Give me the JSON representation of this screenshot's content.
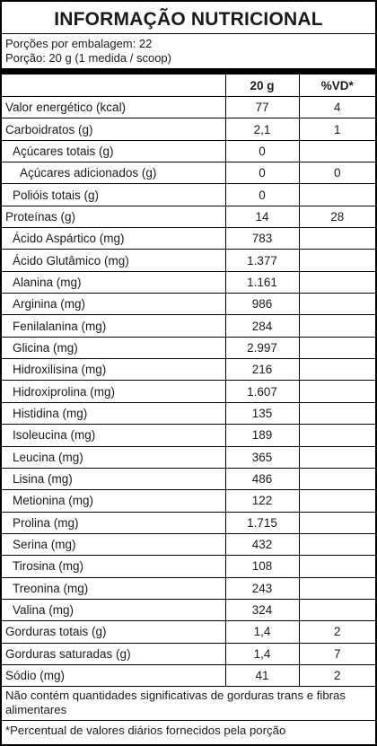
{
  "title": "INFORMAÇÃO NUTRICIONAL",
  "servings_per_package": "Porções por embalagem: 22",
  "serving_size": "Porção: 20 g (1 medida / scoop)",
  "table_header": {
    "name": "",
    "amount": "20 g",
    "dv": "%VD*"
  },
  "rows": [
    {
      "name": "Valor energético (kcal)",
      "value": "77",
      "dv": "4",
      "indent": 0
    },
    {
      "name": "Carboidratos (g)",
      "value": "2,1",
      "dv": "1",
      "indent": 0
    },
    {
      "name": "Açúcares totais (g)",
      "value": "0",
      "dv": "",
      "indent": 1
    },
    {
      "name": "Açúcares adicionados (g)",
      "value": "0",
      "dv": "0",
      "indent": 2
    },
    {
      "name": "Polióis totais (g)",
      "value": "0",
      "dv": "",
      "indent": 1
    },
    {
      "name": "Proteínas (g)",
      "value": "14",
      "dv": "28",
      "indent": 0
    },
    {
      "name": "Ácido Aspártico (mg)",
      "value": "783",
      "dv": "",
      "indent": 1
    },
    {
      "name": "Ácido Glutâmico (mg)",
      "value": "1.377",
      "dv": "",
      "indent": 1
    },
    {
      "name": "Alanina (mg)",
      "value": "1.161",
      "dv": "",
      "indent": 1
    },
    {
      "name": "Arginina (mg)",
      "value": "986",
      "dv": "",
      "indent": 1
    },
    {
      "name": "Fenilalanina (mg)",
      "value": "284",
      "dv": "",
      "indent": 1
    },
    {
      "name": "Glicina (mg)",
      "value": "2.997",
      "dv": "",
      "indent": 1
    },
    {
      "name": "Hidroxilisina (mg)",
      "value": "216",
      "dv": "",
      "indent": 1
    },
    {
      "name": "Hidroxiprolina (mg)",
      "value": "1.607",
      "dv": "",
      "indent": 1
    },
    {
      "name": "Histidina (mg)",
      "value": "135",
      "dv": "",
      "indent": 1
    },
    {
      "name": "Isoleucina (mg)",
      "value": "189",
      "dv": "",
      "indent": 1
    },
    {
      "name": "Leucina (mg)",
      "value": "365",
      "dv": "",
      "indent": 1
    },
    {
      "name": "Lisina (mg)",
      "value": "486",
      "dv": "",
      "indent": 1
    },
    {
      "name": "Metionina (mg)",
      "value": "122",
      "dv": "",
      "indent": 1
    },
    {
      "name": "Prolina (mg)",
      "value": "1.715",
      "dv": "",
      "indent": 1
    },
    {
      "name": "Serina (mg)",
      "value": "432",
      "dv": "",
      "indent": 1
    },
    {
      "name": "Tirosina (mg)",
      "value": "108",
      "dv": "",
      "indent": 1
    },
    {
      "name": "Treonina (mg)",
      "value": "243",
      "dv": "",
      "indent": 1
    },
    {
      "name": "Valina (mg)",
      "value": "324",
      "dv": "",
      "indent": 1
    },
    {
      "name": "Gorduras totais (g)",
      "value": "1,4",
      "dv": "2",
      "indent": 0
    },
    {
      "name": "Gorduras saturadas (g)",
      "value": "1,4",
      "dv": "7",
      "indent": 0
    },
    {
      "name": "Sódio (mg)",
      "value": "41",
      "dv": "2",
      "indent": 0
    }
  ],
  "footnote_insignificant": "Não contém quantidades significativas de gorduras trans e fibras alimentares",
  "footnote_dv": "*Percentual de valores diários fornecidos pela porção"
}
